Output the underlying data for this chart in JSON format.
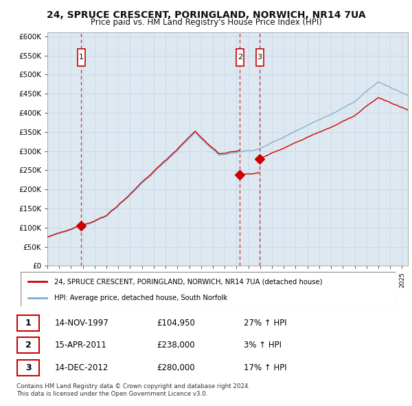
{
  "title": "24, SPRUCE CRESCENT, PORINGLAND, NORWICH, NR14 7UA",
  "subtitle": "Price paid vs. HM Land Registry's House Price Index (HPI)",
  "ylabel_ticks": [
    "£0",
    "£50K",
    "£100K",
    "£150K",
    "£200K",
    "£250K",
    "£300K",
    "£350K",
    "£400K",
    "£450K",
    "£500K",
    "£550K",
    "£600K"
  ],
  "ytick_values": [
    0,
    50000,
    100000,
    150000,
    200000,
    250000,
    300000,
    350000,
    400000,
    450000,
    500000,
    550000,
    600000
  ],
  "price_paid_color": "#cc0000",
  "hpi_color": "#7aadcc",
  "vline_color": "#cc0000",
  "chart_bg": "#dde8f0",
  "purchases": [
    {
      "label": "1",
      "date": "14-NOV-1997",
      "price": 104950,
      "x": 1997.87,
      "pct": "27%",
      "dir": "↑"
    },
    {
      "label": "2",
      "date": "15-APR-2011",
      "price": 238000,
      "x": 2011.29,
      "pct": "3%",
      "dir": "↑"
    },
    {
      "label": "3",
      "date": "14-DEC-2012",
      "price": 280000,
      "x": 2012.96,
      "pct": "17%",
      "dir": "↑"
    }
  ],
  "legend_line1": "24, SPRUCE CRESCENT, PORINGLAND, NORWICH, NR14 7UA (detached house)",
  "legend_line2": "HPI: Average price, detached house, South Norfolk",
  "footnote1": "Contains HM Land Registry data © Crown copyright and database right 2024.",
  "footnote2": "This data is licensed under the Open Government Licence v3.0.",
  "xmin": 1995.0,
  "xmax": 2025.5,
  "ymin": 0,
  "ymax": 610000,
  "background_color": "#ffffff",
  "grid_color": "#c8d8e8"
}
